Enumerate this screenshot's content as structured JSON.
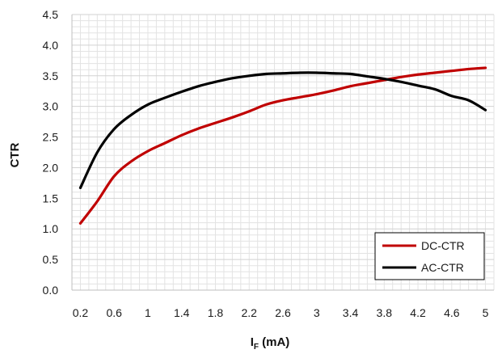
{
  "chart_data": {
    "type": "line",
    "xlabel_main": "I",
    "xlabel_sub": "F",
    "xlabel_unit": " (mA)",
    "ylabel": "CTR",
    "xlim": [
      0.1,
      5.1
    ],
    "ylim": [
      0,
      4.5
    ],
    "x_ticks": [
      0.2,
      0.6,
      1,
      1.4,
      1.8,
      2.2,
      2.6,
      3,
      3.4,
      3.8,
      4.2,
      4.6,
      5
    ],
    "x_tick_labels": [
      "0.2",
      "0.6",
      "1",
      "1.4",
      "1.8",
      "2.2",
      "2.6",
      "3",
      "3.4",
      "3.8",
      "4.2",
      "4.6",
      "5"
    ],
    "y_ticks": [
      0,
      0.5,
      1,
      1.5,
      2,
      2.5,
      3,
      3.5,
      4,
      4.5
    ],
    "y_tick_labels": [
      "0.0",
      "0.5",
      "1.0",
      "1.5",
      "2.0",
      "2.5",
      "3.0",
      "3.5",
      "4.0",
      "4.5"
    ],
    "grid": true,
    "legend_position": "bottom-right",
    "series": [
      {
        "name": "DC-CTR",
        "color": "#c00000",
        "x": [
          0.2,
          0.4,
          0.6,
          0.8,
          1.0,
          1.2,
          1.4,
          1.6,
          1.8,
          2.0,
          2.2,
          2.4,
          2.6,
          2.8,
          3.0,
          3.2,
          3.4,
          3.6,
          3.8,
          4.0,
          4.2,
          4.4,
          4.6,
          4.8,
          5.0
        ],
        "values": [
          1.09,
          1.45,
          1.86,
          2.1,
          2.27,
          2.4,
          2.53,
          2.64,
          2.73,
          2.82,
          2.92,
          3.03,
          3.1,
          3.15,
          3.2,
          3.26,
          3.33,
          3.38,
          3.43,
          3.48,
          3.52,
          3.55,
          3.58,
          3.61,
          3.63
        ]
      },
      {
        "name": "AC-CTR",
        "color": "#000000",
        "x": [
          0.2,
          0.4,
          0.6,
          0.8,
          1.0,
          1.2,
          1.4,
          1.6,
          1.8,
          2.0,
          2.2,
          2.4,
          2.6,
          2.8,
          3.0,
          3.2,
          3.4,
          3.6,
          3.8,
          4.0,
          4.2,
          4.4,
          4.6,
          4.8,
          5.0
        ],
        "values": [
          1.67,
          2.25,
          2.63,
          2.86,
          3.03,
          3.14,
          3.24,
          3.33,
          3.4,
          3.46,
          3.5,
          3.53,
          3.54,
          3.55,
          3.55,
          3.54,
          3.53,
          3.49,
          3.45,
          3.4,
          3.34,
          3.28,
          3.17,
          3.1,
          2.94
        ]
      }
    ]
  }
}
